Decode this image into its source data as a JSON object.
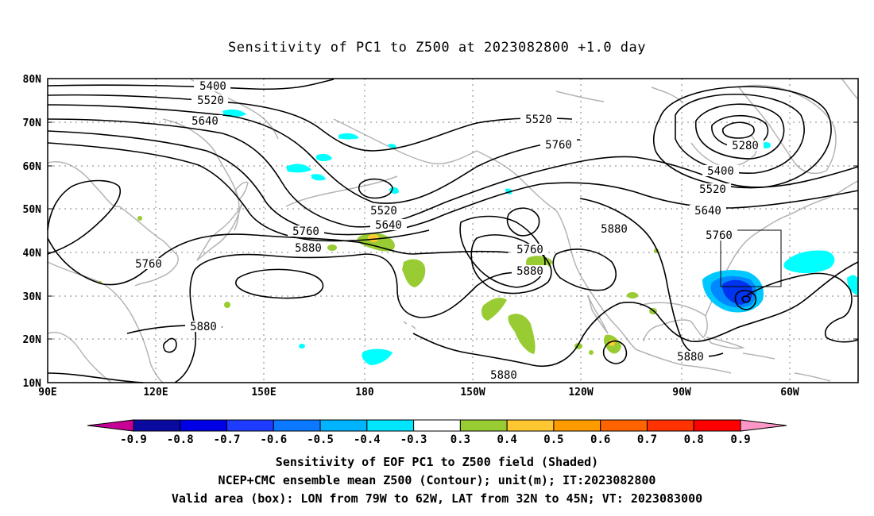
{
  "title": "Sensitivity of PC1 to Z500 at 2023082800 +1.0 day",
  "map": {
    "lat_labels": [
      "80N",
      "70N",
      "60N",
      "50N",
      "40N",
      "30N",
      "20N",
      "10N"
    ],
    "lon_labels": [
      "90E",
      "120E",
      "150E",
      "180",
      "150W",
      "120W",
      "90W",
      "60W"
    ],
    "contour_labels": [
      "5400",
      "5520",
      "5640",
      "5520",
      "5760",
      "5280",
      "5400",
      "5520",
      "5640",
      "5760",
      "5520",
      "5640",
      "5760",
      "5880",
      "5760",
      "5880",
      "5760",
      "5880",
      "5880",
      "5880",
      "5880"
    ],
    "colors": {
      "land_outline": "#b4b4b4",
      "contour": "#000000",
      "green_shade": "#99cc33",
      "cyan_shade": "#00ffff",
      "blue_dark": "#0033ee",
      "blue_mid": "#0088ff",
      "blue_light": "#00c8ff",
      "orange_shade": "#ffcc33"
    }
  },
  "colorbar": {
    "labels": [
      "-0.9",
      "-0.8",
      "-0.7",
      "-0.6",
      "-0.5",
      "-0.4",
      "-0.3",
      "0.3",
      "0.4",
      "0.5",
      "0.6",
      "0.7",
      "0.8",
      "0.9"
    ],
    "colors": [
      "#c80096",
      "#0a0aa0",
      "#0000e6",
      "#1e3cff",
      "#0a78ff",
      "#00b4ff",
      "#00e6ff",
      "#ffffff",
      "#99cc33",
      "#ffc832",
      "#ff9b00",
      "#ff6400",
      "#ff3200",
      "#ff0000",
      "#ff96c8"
    ]
  },
  "captions": {
    "line1": "Sensitivity of EOF PC1 to Z500 field (Shaded)",
    "line2": "NCEP+CMC ensemble mean Z500 (Contour); unit(m); IT:2023082800",
    "line3": "Valid area (box): LON from 79W to 62W, LAT from 32N to 45N; VT: 2023083000"
  }
}
